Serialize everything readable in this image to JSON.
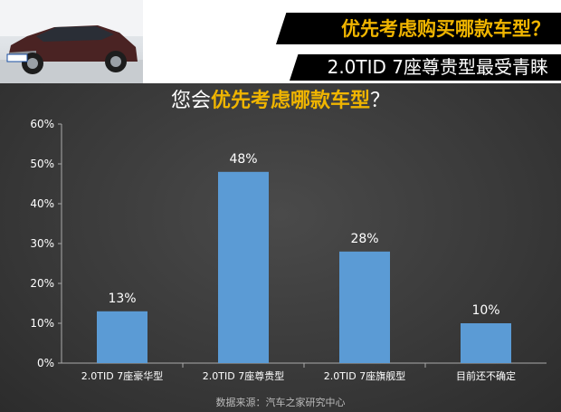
{
  "header": {
    "title": "优先考虑购买哪款车型？",
    "subtitle": "2.0TID 7座尊贵型最受青睐"
  },
  "chart_title": {
    "prefix": "您会",
    "highlight": "优先考虑哪款车型",
    "suffix": "？"
  },
  "source": "数据来源：汽车之家研究中心",
  "colors": {
    "bar": "#5b9bd5",
    "accent": "#f0b500",
    "title_bar": "#000000"
  },
  "chart_data": {
    "type": "bar",
    "title": "您会优先考虑哪款车型？",
    "categories": [
      "2.0TID 7座豪华型",
      "2.0TID 7座尊贵型",
      "2.0TID 7座旗舰型",
      "目前还不确定"
    ],
    "values": [
      13,
      48,
      28,
      10
    ],
    "data_labels": [
      "13%",
      "48%",
      "28%",
      "10%"
    ],
    "ylim": [
      0,
      60
    ],
    "yticks": [
      "0%",
      "10%",
      "20%",
      "30%",
      "40%",
      "50%",
      "60%"
    ],
    "grid": false,
    "legend": "none"
  }
}
